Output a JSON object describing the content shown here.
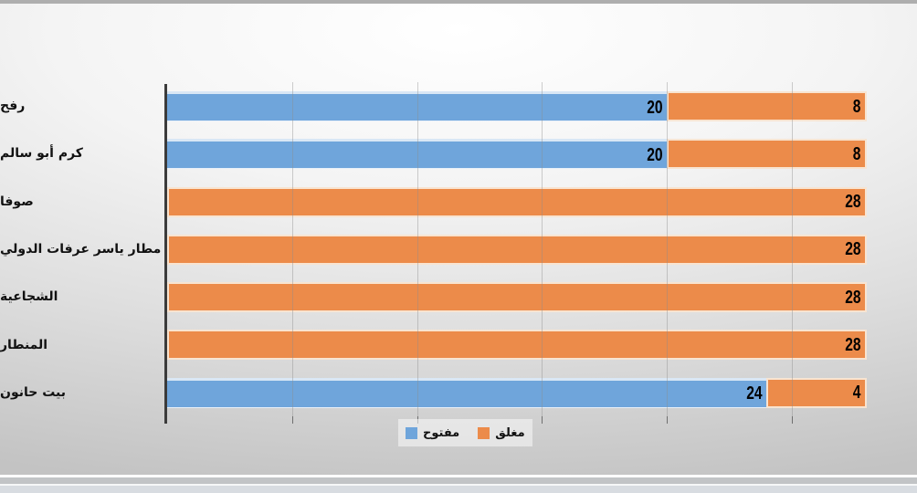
{
  "slide": {
    "top_edge_color": "#AEAEAE",
    "background_style": "gray radial gradient, bright top-center"
  },
  "chart_data": {
    "type": "bar",
    "orientation": "horizontal",
    "stacked": true,
    "title": "",
    "xlabel": "",
    "ylabel": "",
    "categories": [
      "رفح",
      "كرم أبو سالم",
      "صوفا",
      "مطار ياسر عرفات الدولي",
      "الشجاعية",
      "المنطار",
      "بيت حانون"
    ],
    "series": [
      {
        "name": "مفتوح",
        "color": "#6FA5DB",
        "values": [
          20,
          20,
          0,
          0,
          0,
          0,
          24
        ]
      },
      {
        "name": "مغلق",
        "color": "#EC8B4A",
        "values": [
          8,
          8,
          28,
          28,
          28,
          28,
          4
        ]
      }
    ],
    "data_labels": "inside-end",
    "xlim": [
      0,
      30
    ],
    "gridline_interval": 5,
    "value_axis_tick_labels_visible": false,
    "grid": "vertical-only",
    "legend_position": "bottom-center",
    "axis_line_color": "#3B3B3B",
    "gridline_color": "#8C8C8C"
  }
}
